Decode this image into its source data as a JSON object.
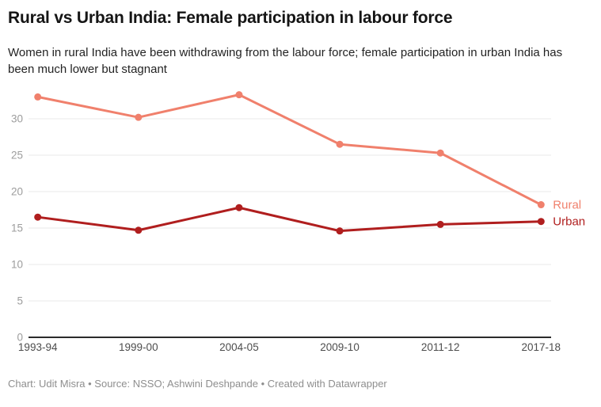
{
  "header": {
    "title": "Rural vs Urban India: Female participation in labour force",
    "subtitle": "Women in rural India have been withdrawing from the labour force; female participation in urban India has been much lower but stagnant"
  },
  "footer": {
    "text": "Chart: Udit Misra • Source: NSSO; Ashwini Deshpande • Created with Datawrapper"
  },
  "chart_data": {
    "type": "line",
    "title": "Rural vs Urban India: Female participation in labour force",
    "categories": [
      "1993-94",
      "1999-00",
      "2004-05",
      "2009-10",
      "2011-12",
      "2017-18"
    ],
    "series": [
      {
        "name": "Rural",
        "color": "#f0806c",
        "values": [
          33.0,
          30.2,
          33.3,
          26.5,
          25.3,
          18.2
        ]
      },
      {
        "name": "Urban",
        "color": "#b01e1e",
        "values": [
          16.5,
          14.7,
          17.8,
          14.6,
          15.5,
          15.9
        ]
      }
    ],
    "xlabel": "",
    "ylabel": "",
    "ylim": [
      0,
      34
    ],
    "yticks": [
      0,
      5,
      10,
      15,
      20,
      25,
      30
    ],
    "grid": "horizontal",
    "legend_position": "end-of-line",
    "colors": {
      "grid_line": "#e9e9e9",
      "axis_line": "#2b2b2b",
      "y_tick_label": "#9d9d9d",
      "x_tick_label": "#4d4d4d"
    }
  }
}
